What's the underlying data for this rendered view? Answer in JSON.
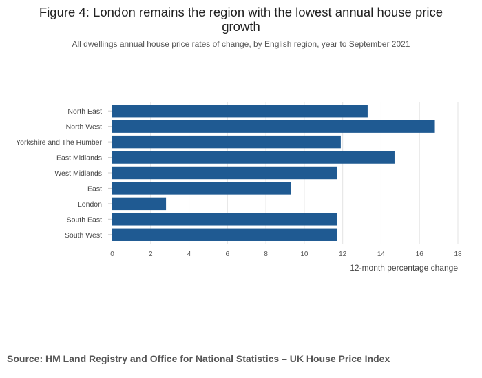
{
  "title": "Figure 4: London remains the region with the lowest annual house price growth",
  "subtitle": "All dwellings annual house price rates of change, by English region, year to September 2021",
  "source": "Source: HM Land Registry and Office for National Statistics – UK House Price Index",
  "chart_data": {
    "type": "bar",
    "orientation": "horizontal",
    "categories": [
      "North East",
      "North West",
      "Yorkshire and The Humber",
      "East Midlands",
      "West Midlands",
      "East",
      "London",
      "South East",
      "South West"
    ],
    "values": [
      13.3,
      16.8,
      11.9,
      14.7,
      11.7,
      9.3,
      2.8,
      11.7,
      11.7
    ],
    "xlabel": "12-month percentage change",
    "ylabel": "",
    "xlim": [
      0,
      18
    ],
    "xticks": [
      0,
      2,
      4,
      6,
      8,
      10,
      12,
      14,
      16,
      18
    ],
    "bar_color": "#1f5a92",
    "grid": true
  }
}
